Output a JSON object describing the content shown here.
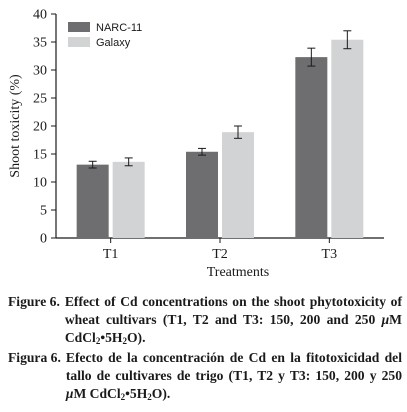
{
  "chart_data": {
    "type": "bar",
    "categories": [
      "T1",
      "T2",
      "T3"
    ],
    "series": [
      {
        "name": "NARC-11",
        "color": "#6e6e70",
        "values": [
          13.1,
          15.4,
          32.3
        ],
        "errors": [
          0.6,
          0.6,
          1.6
        ]
      },
      {
        "name": "Galaxy",
        "color": "#d2d3d5",
        "values": [
          13.6,
          18.9,
          35.4
        ],
        "errors": [
          0.7,
          1.1,
          1.6
        ]
      }
    ],
    "title": "",
    "xlabel": "Treatments",
    "ylabel": "Shoot toxicity (%)",
    "ylim": [
      0,
      40
    ],
    "yticks": [
      0,
      5,
      10,
      15,
      20,
      25,
      30,
      35,
      40
    ],
    "grid": false,
    "legend_position": "top-left"
  },
  "captions": [
    {
      "label": "Figure 6.",
      "text_before": "Effect of Cd concentrations on the shoot phytotoxicity of wheat cultivars (T1, T2 and T3: 150, 200 and 250 ",
      "mu": "μ",
      "unit_before_sub": "M CdCl",
      "sub_a": "2",
      "mid": "•5H",
      "sub_b": "2",
      "text_after": "O)."
    },
    {
      "label": "Figura 6.",
      "text_before": "Efecto de la concentración de Cd en la fitotoxicidad del tallo de cultivares de trigo (T1, T2 y T3: 150, 200 y 250 ",
      "mu": "μ",
      "unit_before_sub": "M CdCl",
      "sub_a": "2",
      "mid": "•5H",
      "sub_b": "2",
      "text_after": "O)."
    }
  ]
}
